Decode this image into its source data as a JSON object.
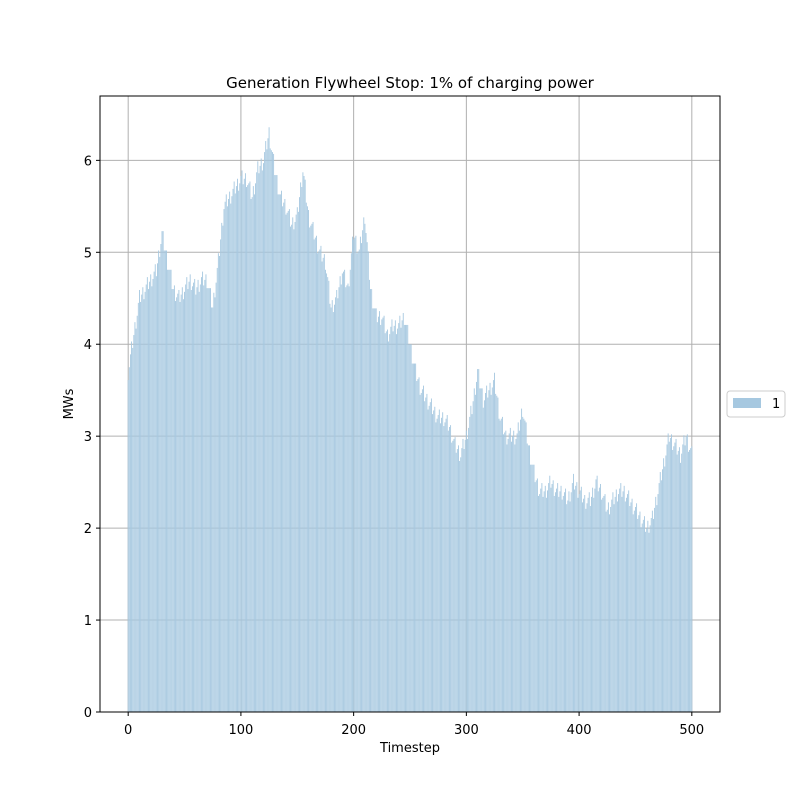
{
  "chart_data": {
    "type": "bar",
    "title": "Generation Flywheel Stop: 1% of charging power",
    "xlabel": "Timestep",
    "ylabel": "MWs",
    "xlim": [
      -25,
      525
    ],
    "ylim": [
      0,
      6.7
    ],
    "xticks": [
      0,
      100,
      200,
      300,
      400,
      500
    ],
    "yticks": [
      0,
      1,
      2,
      3,
      4,
      5,
      6
    ],
    "grid": true,
    "legend_position": "right, outside plot",
    "bar_color": "#a6c8e0",
    "series": [
      {
        "name": "1",
        "x_start": 0,
        "x_step": 5,
        "values": [
          3.7,
          4.1,
          4.5,
          4.6,
          4.7,
          4.8,
          5.2,
          4.9,
          4.6,
          4.5,
          4.6,
          4.7,
          4.6,
          4.7,
          4.7,
          4.4,
          4.9,
          5.5,
          5.6,
          5.7,
          5.8,
          5.8,
          5.6,
          5.9,
          6.0,
          6.3,
          5.9,
          5.6,
          5.5,
          5.3,
          5.4,
          5.9,
          5.4,
          5.2,
          5.0,
          4.9,
          4.4,
          4.5,
          4.8,
          4.6,
          5.2,
          5.0,
          5.4,
          4.6,
          4.3,
          4.3,
          4.1,
          4.2,
          4.2,
          4.3,
          4.0,
          3.7,
          3.5,
          3.4,
          3.3,
          3.2,
          3.2,
          3.1,
          2.9,
          2.8,
          3.0,
          3.3,
          3.7,
          3.4,
          3.5,
          3.6,
          3.2,
          3.0,
          3.0,
          3.0,
          3.3,
          2.9,
          2.6,
          2.4,
          2.4,
          2.5,
          2.4,
          2.4,
          2.3,
          2.5,
          2.4,
          2.3,
          2.3,
          2.5,
          2.4,
          2.2,
          2.3,
          2.4,
          2.4,
          2.3,
          2.2,
          2.1,
          2.0,
          2.1,
          2.4,
          2.7,
          3.0,
          2.9,
          2.8,
          3.0,
          2.8
        ]
      }
    ]
  }
}
